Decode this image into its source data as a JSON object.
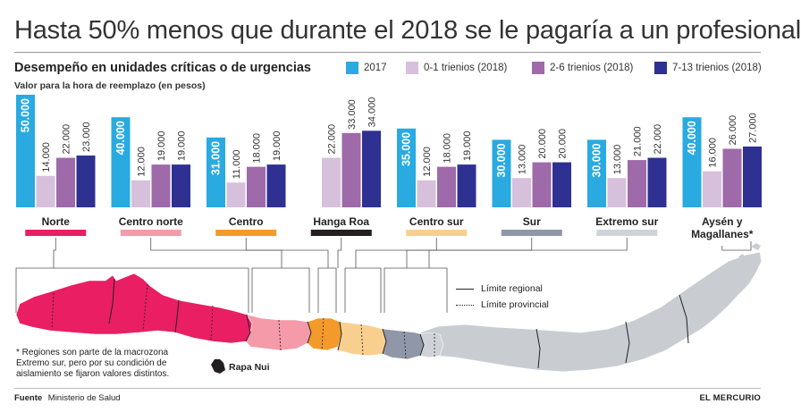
{
  "headline": "Hasta 50% menos que durante el 2018 se le pagaría a un profesional",
  "unit_note": "Valor para la hora de reemplazo (en pesos)",
  "footnote": "* Regiones son parte de la macrozona Extremo sur, pero por su condición de aislamiento se fijaron valores distintos.",
  "map": {
    "rapa_nui_label": "Rapa Nui",
    "legend_regional": "Límite regional",
    "legend_provincial": "Límite provincial"
  },
  "source": {
    "label": "Fuente",
    "value": "Ministerio de Salud"
  },
  "publisher": "EL MERCURIO",
  "colors": {
    "series": [
      "#29aae1",
      "#d7c0dc",
      "#9e6aa9",
      "#2e3191"
    ],
    "zones": [
      "#e91e63",
      "#f49aa9",
      "#f39a2a",
      "#231f20",
      "#f9cf90",
      "#8f97a8",
      "#cfd3d8",
      "#cfd3d8"
    ],
    "map_gray": "#c9cdd2"
  },
  "chart_data": {
    "type": "bar",
    "title": "Desempeño en unidades críticas o de urgencias",
    "ylabel": "Valor para la hora de reemplazo (en pesos)",
    "categories": [
      "Norte",
      "Centro norte",
      "Centro",
      "Hanga Roa",
      "Centro sur",
      "Sur",
      "Extremo sur",
      "Aysén y Magallanes*"
    ],
    "series": [
      {
        "name": "2017",
        "values": [
          50000,
          40000,
          31000,
          null,
          35000,
          30000,
          30000,
          40000
        ],
        "labels": [
          "50.000",
          "40.000",
          "31.000",
          "",
          "35.000",
          "30.000",
          "30.000",
          "40.000"
        ]
      },
      {
        "name": "0-1 trienios (2018)",
        "values": [
          14000,
          12000,
          11000,
          22000,
          12000,
          13000,
          13000,
          16000
        ],
        "labels": [
          "14.000",
          "12.000",
          "11.000",
          "22.000",
          "12.000",
          "13.000",
          "13.000",
          "16.000"
        ]
      },
      {
        "name": "2-6 trienios (2018)",
        "values": [
          22000,
          19000,
          18000,
          33000,
          18000,
          20000,
          21000,
          26000
        ],
        "labels": [
          "22.000",
          "19.000",
          "18.000",
          "33.000",
          "18.000",
          "20.000",
          "21.000",
          "26.000"
        ]
      },
      {
        "name": "7-13 trienios (2018)",
        "values": [
          23000,
          19000,
          19000,
          34000,
          19000,
          20000,
          22000,
          27000
        ],
        "labels": [
          "23.000",
          "19.000",
          "19.000",
          "34.000",
          "19.000",
          "20.000",
          "22.000",
          "27.000"
        ]
      }
    ],
    "ylim": [
      0,
      50000
    ],
    "grid": false,
    "legend_position": "top-right"
  }
}
